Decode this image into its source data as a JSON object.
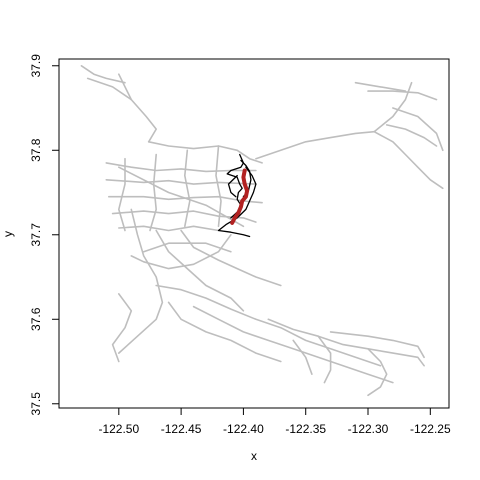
{
  "chart_data": {
    "type": "line",
    "title": "",
    "xlabel": "x",
    "ylabel": "y",
    "xlim": [
      -122.548,
      -122.235
    ],
    "ylim": [
      37.495,
      37.908
    ],
    "x_ticks": [
      -122.5,
      -122.45,
      -122.4,
      -122.35,
      -122.3,
      -122.25
    ],
    "x_tick_labels": [
      "-122.50",
      "-122.45",
      "-122.40",
      "-122.35",
      "-122.30",
      "-122.25"
    ],
    "y_ticks": [
      37.5,
      37.6,
      37.7,
      37.8,
      37.9
    ],
    "y_tick_labels": [
      "37.5",
      "37.6",
      "37.7",
      "37.8",
      "37.9"
    ],
    "grid": false,
    "legend": "none",
    "colors": {
      "network": "#bebebe",
      "route": "#000000",
      "highlight": "#b22222",
      "frame": "#000000"
    },
    "series": [
      {
        "role": "network",
        "lines": [
          [
            [
              -122.525,
              37.885
            ],
            [
              -122.505,
              37.875
            ],
            [
              -122.49,
              37.86
            ],
            [
              -122.478,
              37.84
            ],
            [
              -122.47,
              37.825
            ],
            [
              -122.476,
              37.81
            ]
          ],
          [
            [
              -122.53,
              37.9
            ],
            [
              -122.52,
              37.89
            ],
            [
              -122.51,
              37.885
            ],
            [
              -122.495,
              37.88
            ]
          ],
          [
            [
              -122.5,
              37.89
            ],
            [
              -122.49,
              37.86
            ]
          ],
          [
            [
              -122.476,
              37.81
            ],
            [
              -122.46,
              37.805
            ],
            [
              -122.44,
              37.802
            ],
            [
              -122.42,
              37.805
            ],
            [
              -122.405,
              37.8
            ],
            [
              -122.395,
              37.79
            ],
            [
              -122.385,
              37.785
            ]
          ],
          [
            [
              -122.51,
              37.785
            ],
            [
              -122.49,
              37.78
            ],
            [
              -122.47,
              37.776
            ],
            [
              -122.45,
              37.778
            ],
            [
              -122.43,
              37.775
            ],
            [
              -122.41,
              37.776
            ],
            [
              -122.39,
              37.776
            ]
          ],
          [
            [
              -122.51,
              37.765
            ],
            [
              -122.48,
              37.762
            ],
            [
              -122.46,
              37.764
            ],
            [
              -122.44,
              37.76
            ],
            [
              -122.42,
              37.762
            ],
            [
              -122.39,
              37.76
            ]
          ],
          [
            [
              -122.508,
              37.745
            ],
            [
              -122.48,
              37.745
            ],
            [
              -122.46,
              37.742
            ],
            [
              -122.44,
              37.744
            ],
            [
              -122.42,
              37.745
            ],
            [
              -122.4,
              37.74
            ],
            [
              -122.385,
              37.738
            ]
          ],
          [
            [
              -122.505,
              37.725
            ],
            [
              -122.48,
              37.728
            ],
            [
              -122.46,
              37.725
            ],
            [
              -122.44,
              37.728
            ],
            [
              -122.42,
              37.722
            ],
            [
              -122.4,
              37.72
            ],
            [
              -122.39,
              37.715
            ]
          ],
          [
            [
              -122.5,
              37.708
            ],
            [
              -122.48,
              37.71
            ],
            [
              -122.46,
              37.705
            ],
            [
              -122.44,
              37.71
            ],
            [
              -122.42,
              37.705
            ]
          ],
          [
            [
              -122.495,
              37.79
            ],
            [
              -122.495,
              37.76
            ],
            [
              -122.5,
              37.73
            ],
            [
              -122.495,
              37.705
            ]
          ],
          [
            [
              -122.47,
              37.795
            ],
            [
              -122.472,
              37.76
            ],
            [
              -122.47,
              37.73
            ],
            [
              -122.475,
              37.705
            ]
          ],
          [
            [
              -122.445,
              37.8
            ],
            [
              -122.447,
              37.77
            ],
            [
              -122.443,
              37.74
            ],
            [
              -122.447,
              37.71
            ]
          ],
          [
            [
              -122.42,
              37.805
            ],
            [
              -122.422,
              37.77
            ],
            [
              -122.418,
              37.74
            ],
            [
              -122.42,
              37.71
            ]
          ],
          [
            [
              -122.5,
              37.78
            ],
            [
              -122.46,
              37.75
            ],
            [
              -122.43,
              37.735
            ],
            [
              -122.4,
              37.71
            ]
          ],
          [
            [
              -122.49,
              37.73
            ],
            [
              -122.485,
              37.7
            ],
            [
              -122.48,
              37.675
            ],
            [
              -122.47,
              37.65
            ],
            [
              -122.465,
              37.62
            ],
            [
              -122.47,
              37.6
            ],
            [
              -122.485,
              37.58
            ],
            [
              -122.5,
              37.56
            ]
          ],
          [
            [
              -122.47,
              37.705
            ],
            [
              -122.46,
              37.68
            ],
            [
              -122.445,
              37.66
            ],
            [
              -122.43,
              37.64
            ],
            [
              -122.41,
              37.625
            ],
            [
              -122.4,
              37.61
            ]
          ],
          [
            [
              -122.45,
              37.705
            ],
            [
              -122.44,
              37.685
            ],
            [
              -122.42,
              37.67
            ],
            [
              -122.405,
              37.66
            ],
            [
              -122.39,
              37.65
            ],
            [
              -122.37,
              37.64
            ]
          ],
          [
            [
              -122.41,
              37.7
            ],
            [
              -122.42,
              37.68
            ],
            [
              -122.44,
              37.665
            ],
            [
              -122.46,
              37.66
            ],
            [
              -122.48,
              37.668
            ],
            [
              -122.49,
              37.675
            ]
          ],
          [
            [
              -122.48,
              37.68
            ],
            [
              -122.46,
              37.69
            ],
            [
              -122.43,
              37.69
            ],
            [
              -122.41,
              37.68
            ]
          ],
          [
            [
              -122.47,
              37.64
            ],
            [
              -122.45,
              37.635
            ],
            [
              -122.43,
              37.625
            ],
            [
              -122.41,
              37.612
            ],
            [
              -122.39,
              37.6
            ],
            [
              -122.37,
              37.59
            ],
            [
              -122.35,
              37.575
            ],
            [
              -122.33,
              37.565
            ],
            [
              -122.31,
              37.555
            ],
            [
              -122.29,
              37.545
            ]
          ],
          [
            [
              -122.44,
              37.615
            ],
            [
              -122.42,
              37.6
            ],
            [
              -122.4,
              37.585
            ],
            [
              -122.38,
              37.575
            ],
            [
              -122.36,
              37.565
            ],
            [
              -122.34,
              37.555
            ],
            [
              -122.32,
              37.545
            ],
            [
              -122.3,
              37.535
            ],
            [
              -122.28,
              37.525
            ]
          ],
          [
            [
              -122.38,
              37.6
            ],
            [
              -122.36,
              37.588
            ],
            [
              -122.34,
              37.58
            ],
            [
              -122.32,
              37.57
            ],
            [
              -122.3,
              37.565
            ],
            [
              -122.28,
              37.56
            ],
            [
              -122.26,
              37.555
            ],
            [
              -122.255,
              37.545
            ]
          ],
          [
            [
              -122.33,
              37.585
            ],
            [
              -122.3,
              37.58
            ],
            [
              -122.28,
              37.575
            ],
            [
              -122.26,
              37.568
            ],
            [
              -122.255,
              37.555
            ]
          ],
          [
            [
              -122.3,
              37.565
            ],
            [
              -122.29,
              37.55
            ],
            [
              -122.285,
              37.535
            ],
            [
              -122.29,
              37.52
            ],
            [
              -122.3,
              37.51
            ]
          ],
          [
            [
              -122.34,
              37.58
            ],
            [
              -122.33,
              37.56
            ],
            [
              -122.33,
              37.54
            ],
            [
              -122.335,
              37.525
            ]
          ],
          [
            [
              -122.36,
              37.575
            ],
            [
              -122.35,
              37.555
            ],
            [
              -122.345,
              37.535
            ]
          ],
          [
            [
              -122.5,
              37.63
            ],
            [
              -122.49,
              37.61
            ],
            [
              -122.495,
              37.59
            ],
            [
              -122.505,
              37.57
            ],
            [
              -122.5,
              37.55
            ]
          ],
          [
            [
              -122.46,
              37.62
            ],
            [
              -122.45,
              37.6
            ],
            [
              -122.43,
              37.585
            ],
            [
              -122.41,
              37.575
            ],
            [
              -122.39,
              37.56
            ],
            [
              -122.37,
              37.55
            ]
          ],
          [
            [
              -122.39,
              37.79
            ],
            [
              -122.37,
              37.8
            ],
            [
              -122.35,
              37.81
            ],
            [
              -122.33,
              37.815
            ],
            [
              -122.31,
              37.82
            ],
            [
              -122.295,
              37.822
            ]
          ],
          [
            [
              -122.295,
              37.822
            ],
            [
              -122.28,
              37.84
            ],
            [
              -122.27,
              37.86
            ],
            [
              -122.265,
              37.88
            ]
          ],
          [
            [
              -122.295,
              37.822
            ],
            [
              -122.28,
              37.81
            ],
            [
              -122.27,
              37.795
            ],
            [
              -122.26,
              37.78
            ],
            [
              -122.25,
              37.765
            ],
            [
              -122.24,
              37.755
            ]
          ],
          [
            [
              -122.28,
              37.85
            ],
            [
              -122.26,
              37.84
            ],
            [
              -122.245,
              37.82
            ],
            [
              -122.24,
              37.8
            ]
          ],
          [
            [
              -122.3,
              37.87
            ],
            [
              -122.28,
              37.87
            ],
            [
              -122.26,
              37.868
            ],
            [
              -122.245,
              37.86
            ]
          ],
          [
            [
              -122.31,
              37.88
            ],
            [
              -122.29,
              37.875
            ],
            [
              -122.27,
              37.87
            ]
          ],
          [
            [
              -122.285,
              37.83
            ],
            [
              -122.27,
              37.825
            ],
            [
              -122.255,
              37.815
            ],
            [
              -122.245,
              37.805
            ]
          ]
        ]
      },
      {
        "role": "route",
        "lines": [
          [
            [
              -122.403,
              37.795
            ],
            [
              -122.4,
              37.785
            ],
            [
              -122.402,
              37.78
            ],
            [
              -122.41,
              37.776
            ],
            [
              -122.413,
              37.772
            ],
            [
              -122.405,
              37.768
            ],
            [
              -122.403,
              37.76
            ],
            [
              -122.401,
              37.755
            ],
            [
              -122.404,
              37.75
            ],
            [
              -122.405,
              37.742
            ],
            [
              -122.402,
              37.735
            ],
            [
              -122.404,
              37.728
            ],
            [
              -122.41,
              37.72
            ]
          ],
          [
            [
              -122.398,
              37.78
            ],
            [
              -122.393,
              37.77
            ],
            [
              -122.39,
              37.76
            ],
            [
              -122.392,
              37.75
            ],
            [
              -122.395,
              37.74
            ],
            [
              -122.398,
              37.73
            ],
            [
              -122.405,
              37.72
            ],
            [
              -122.414,
              37.712
            ],
            [
              -122.42,
              37.705
            ],
            [
              -122.41,
              37.703
            ],
            [
              -122.4,
              37.7
            ],
            [
              -122.395,
              37.698
            ]
          ],
          [
            [
              -122.402,
              37.788
            ],
            [
              -122.398,
              37.782
            ],
            [
              -122.395,
              37.775
            ],
            [
              -122.394,
              37.765
            ],
            [
              -122.396,
              37.752
            ],
            [
              -122.4,
              37.745
            ]
          ],
          [
            [
              -122.405,
              37.77
            ],
            [
              -122.412,
              37.76
            ],
            [
              -122.41,
              37.75
            ],
            [
              -122.406,
              37.745
            ]
          ]
        ]
      },
      {
        "role": "highlight",
        "lines": [
          [
            [
              -122.399,
              37.776
            ],
            [
              -122.4,
              37.768
            ],
            [
              -122.399,
              37.76
            ],
            [
              -122.397,
              37.752
            ],
            [
              -122.398,
              37.745
            ],
            [
              -122.401,
              37.74
            ],
            [
              -122.402,
              37.733
            ],
            [
              -122.404,
              37.726
            ],
            [
              -122.407,
              37.72
            ],
            [
              -122.409,
              37.714
            ]
          ]
        ]
      }
    ]
  }
}
